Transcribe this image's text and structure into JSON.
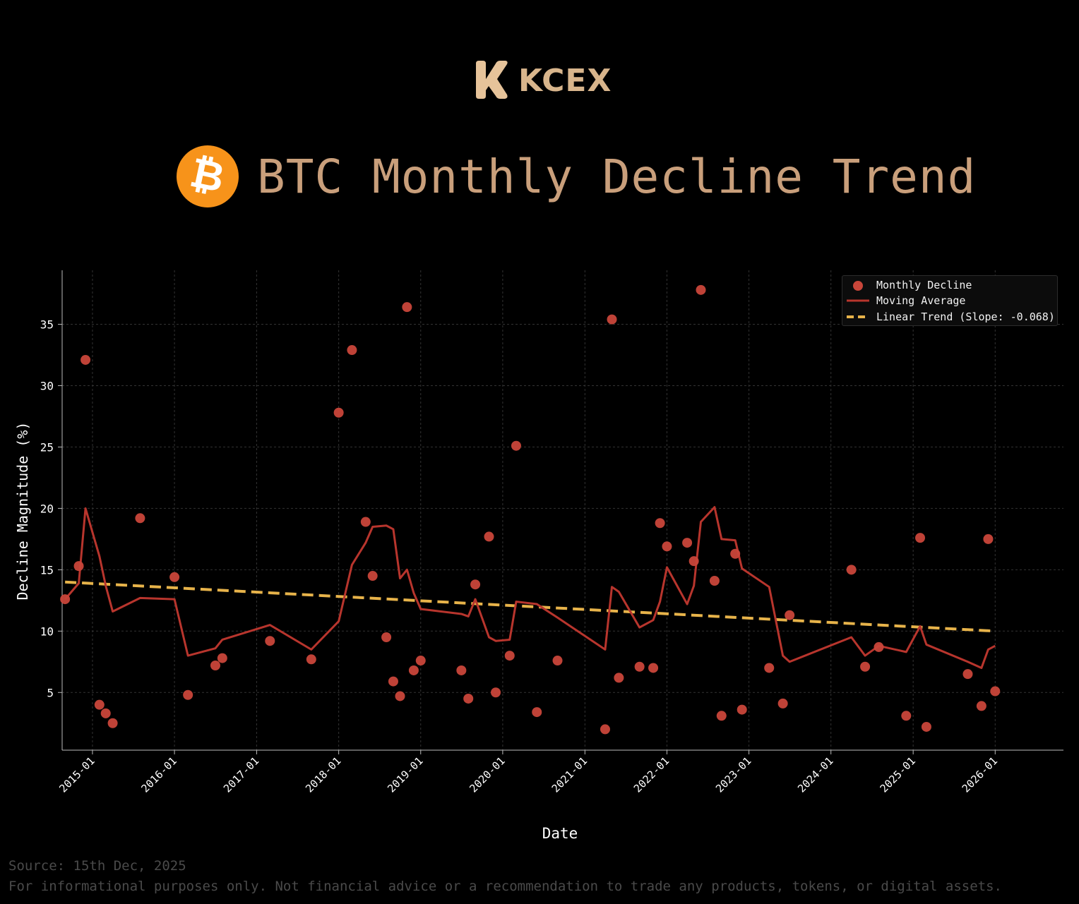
{
  "header": {
    "logo_text": "KCEX",
    "title": "BTC Monthly Decline Trend",
    "coin_icon": "bitcoin-icon"
  },
  "footer": {
    "source": "Source: 15th Dec, 2025",
    "disclaimer": "For informational purposes only. Not financial advice or a recommendation to trade any products, tokens, or digital assets."
  },
  "colors": {
    "background": "#000000",
    "scatter": "#c9463a",
    "moving_average": "#b8352d",
    "trend": "#e7b34a",
    "title": "#c99f7b",
    "logo": "#d8b58c",
    "coin": "#f7931a"
  },
  "chart_data": {
    "type": "scatter",
    "title": "",
    "xlabel": "Date",
    "ylabel": "Decline Magnitude (%)",
    "x_ticks": [
      "2015-01",
      "2016-01",
      "2017-01",
      "2018-01",
      "2019-01",
      "2020-01",
      "2021-01",
      "2022-01",
      "2023-01",
      "2024-01",
      "2025-01",
      "2026-01"
    ],
    "y_ticks": [
      5,
      10,
      15,
      20,
      25,
      30,
      35
    ],
    "xlim": [
      "2014-08-19",
      "2026-11-01"
    ],
    "ylim": [
      0.3,
      39.4
    ],
    "grid": true,
    "legend_position": "top-right",
    "series": [
      {
        "name": "Monthly Decline",
        "kind": "scatter",
        "points": [
          [
            "2014-09-01",
            12.6
          ],
          [
            "2014-11-01",
            15.3
          ],
          [
            "2014-12-01",
            32.1
          ],
          [
            "2015-02-01",
            4.0
          ],
          [
            "2015-03-01",
            3.3
          ],
          [
            "2015-04-01",
            2.5
          ],
          [
            "2015-08-01",
            19.2
          ],
          [
            "2016-01-01",
            14.4
          ],
          [
            "2016-03-01",
            4.8
          ],
          [
            "2016-07-01",
            7.2
          ],
          [
            "2016-08-01",
            7.8
          ],
          [
            "2017-03-01",
            9.2
          ],
          [
            "2017-09-01",
            7.7
          ],
          [
            "2018-01-01",
            27.8
          ],
          [
            "2018-03-01",
            32.9
          ],
          [
            "2018-05-01",
            18.9
          ],
          [
            "2018-06-01",
            14.5
          ],
          [
            "2018-08-01",
            9.5
          ],
          [
            "2018-09-01",
            5.9
          ],
          [
            "2018-10-01",
            4.7
          ],
          [
            "2018-11-01",
            36.4
          ],
          [
            "2018-12-01",
            6.8
          ],
          [
            "2019-01-01",
            7.6
          ],
          [
            "2019-07-01",
            6.8
          ],
          [
            "2019-08-01",
            4.5
          ],
          [
            "2019-09-01",
            13.8
          ],
          [
            "2019-11-01",
            17.7
          ],
          [
            "2019-12-01",
            5.0
          ],
          [
            "2020-02-01",
            8.0
          ],
          [
            "2020-03-01",
            25.1
          ],
          [
            "2020-06-01",
            3.4
          ],
          [
            "2020-09-01",
            7.6
          ],
          [
            "2021-04-01",
            2.0
          ],
          [
            "2021-05-01",
            35.4
          ],
          [
            "2021-06-01",
            6.2
          ],
          [
            "2021-09-01",
            7.1
          ],
          [
            "2021-11-01",
            7.0
          ],
          [
            "2021-12-01",
            18.8
          ],
          [
            "2022-01-01",
            16.9
          ],
          [
            "2022-04-01",
            17.2
          ],
          [
            "2022-05-01",
            15.7
          ],
          [
            "2022-06-01",
            37.8
          ],
          [
            "2022-08-01",
            14.1
          ],
          [
            "2022-09-01",
            3.1
          ],
          [
            "2022-11-01",
            16.3
          ],
          [
            "2022-12-01",
            3.6
          ],
          [
            "2023-04-01",
            7.0
          ],
          [
            "2023-06-01",
            4.1
          ],
          [
            "2023-07-01",
            11.3
          ],
          [
            "2024-04-01",
            15.0
          ],
          [
            "2024-06-01",
            7.1
          ],
          [
            "2024-08-01",
            8.7
          ],
          [
            "2024-12-01",
            3.1
          ],
          [
            "2025-02-01",
            17.6
          ],
          [
            "2025-03-01",
            2.2
          ],
          [
            "2025-09-01",
            6.5
          ],
          [
            "2025-11-01",
            3.9
          ],
          [
            "2025-12-01",
            17.5
          ],
          [
            "2026-01-01",
            5.1
          ]
        ]
      },
      {
        "name": "Moving Average",
        "kind": "line",
        "points": [
          [
            "2014-09-01",
            12.6
          ],
          [
            "2014-11-01",
            13.9
          ],
          [
            "2014-12-01",
            20.0
          ],
          [
            "2015-02-01",
            16.1
          ],
          [
            "2015-03-01",
            13.7
          ],
          [
            "2015-04-01",
            11.6
          ],
          [
            "2015-08-01",
            12.7
          ],
          [
            "2016-01-01",
            12.6
          ],
          [
            "2016-03-01",
            8.0
          ],
          [
            "2016-07-01",
            8.6
          ],
          [
            "2016-08-01",
            9.3
          ],
          [
            "2017-03-01",
            10.5
          ],
          [
            "2017-09-01",
            8.5
          ],
          [
            "2018-01-01",
            10.8
          ],
          [
            "2018-03-01",
            15.4
          ],
          [
            "2018-05-01",
            17.2
          ],
          [
            "2018-06-01",
            18.5
          ],
          [
            "2018-08-01",
            18.6
          ],
          [
            "2018-09-01",
            18.3
          ],
          [
            "2018-10-01",
            14.3
          ],
          [
            "2018-11-01",
            15.0
          ],
          [
            "2018-12-01",
            13.1
          ],
          [
            "2019-01-01",
            11.8
          ],
          [
            "2019-07-01",
            11.4
          ],
          [
            "2019-08-01",
            11.2
          ],
          [
            "2019-09-01",
            12.6
          ],
          [
            "2019-11-01",
            9.5
          ],
          [
            "2019-12-01",
            9.2
          ],
          [
            "2020-02-01",
            9.3
          ],
          [
            "2020-03-01",
            12.4
          ],
          [
            "2020-06-01",
            12.2
          ],
          [
            "2020-09-01",
            11.1
          ],
          [
            "2021-04-01",
            8.5
          ],
          [
            "2021-05-01",
            13.6
          ],
          [
            "2021-06-01",
            13.2
          ],
          [
            "2021-09-01",
            10.3
          ],
          [
            "2021-11-01",
            10.9
          ],
          [
            "2021-12-01",
            12.4
          ],
          [
            "2022-01-01",
            15.2
          ],
          [
            "2022-04-01",
            12.2
          ],
          [
            "2022-05-01",
            13.7
          ],
          [
            "2022-06-01",
            18.9
          ],
          [
            "2022-08-01",
            20.1
          ],
          [
            "2022-09-01",
            17.5
          ],
          [
            "2022-11-01",
            17.4
          ],
          [
            "2022-12-01",
            15.1
          ],
          [
            "2023-04-01",
            13.6
          ],
          [
            "2023-06-01",
            8.0
          ],
          [
            "2023-07-01",
            7.5
          ],
          [
            "2024-04-01",
            9.5
          ],
          [
            "2024-06-01",
            8.0
          ],
          [
            "2024-08-01",
            8.8
          ],
          [
            "2024-12-01",
            8.3
          ],
          [
            "2025-02-01",
            10.4
          ],
          [
            "2025-03-01",
            8.9
          ],
          [
            "2025-09-01",
            7.5
          ],
          [
            "2025-11-01",
            7.0
          ],
          [
            "2025-12-01",
            8.5
          ],
          [
            "2026-01-01",
            8.8
          ]
        ]
      },
      {
        "name": "Linear Trend (Slope: -0.068)",
        "kind": "dashed-line",
        "points": [
          [
            "2014-09-01",
            14.0
          ],
          [
            "2026-01-01",
            10.0
          ]
        ]
      }
    ]
  }
}
